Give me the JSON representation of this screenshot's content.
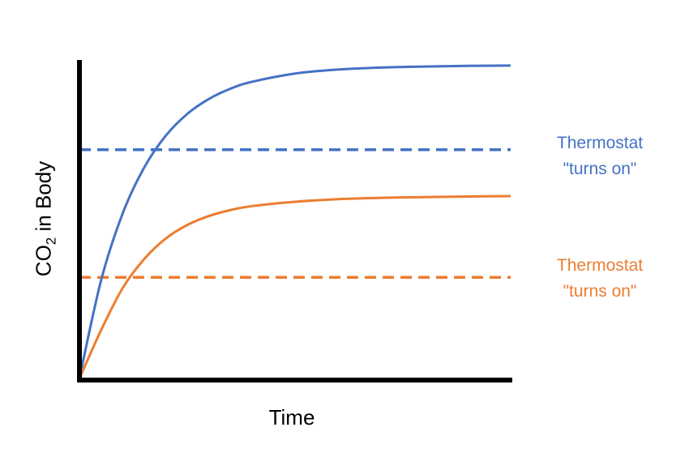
{
  "chart_data": {
    "type": "line",
    "title": "",
    "xlabel": "Time",
    "ylabel": {
      "prefix": "CO",
      "subscript": "2",
      "suffix": " in Body"
    },
    "xlim": [
      0,
      10
    ],
    "ylim": [
      0,
      10
    ],
    "grid": false,
    "series": [
      {
        "color": "#4472C4",
        "style": "solid",
        "x": [
          0,
          0.5,
          1,
          1.5,
          2,
          2.5,
          3,
          3.5,
          4,
          5,
          6,
          7,
          8,
          9,
          10
        ],
        "y": [
          0,
          2.95,
          4.97,
          6.36,
          7.32,
          7.98,
          8.43,
          8.74,
          8.95,
          9.2,
          9.32,
          9.38,
          9.41,
          9.43,
          9.44
        ]
      },
      {
        "color": "#ED7D31",
        "style": "solid",
        "x": [
          0,
          0.5,
          1,
          1.5,
          2,
          2.5,
          3,
          3.5,
          4,
          5,
          6,
          7,
          8,
          9,
          10
        ],
        "y": [
          0,
          1.45,
          2.72,
          3.6,
          4.22,
          4.63,
          4.9,
          5.08,
          5.2,
          5.33,
          5.41,
          5.45,
          5.47,
          5.49,
          5.5
        ]
      },
      {
        "color": "#4472C4",
        "style": "dashed",
        "x": [
          0,
          10
        ],
        "y": [
          6.9,
          6.9
        ]
      },
      {
        "color": "#ED7D31",
        "style": "dashed",
        "x": [
          0,
          10
        ],
        "y": [
          3.05,
          3.05
        ]
      }
    ],
    "annotations": [
      {
        "color": "#4472C4",
        "lines": [
          "Thermostat",
          "\"turns on\""
        ]
      },
      {
        "color": "#ED7D31",
        "lines": [
          "Thermostat",
          "\"turns on\""
        ]
      }
    ]
  }
}
